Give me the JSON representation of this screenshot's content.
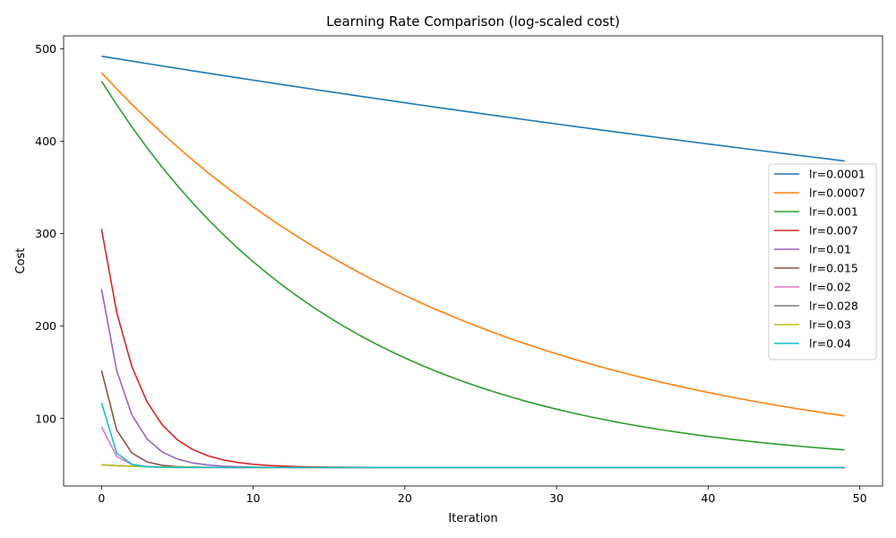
{
  "chart_data": {
    "type": "line",
    "title": "Learning Rate Comparison (log-scaled cost)",
    "xlabel": "Iteration",
    "ylabel": "Cost",
    "xlim": [
      -2.5,
      51.5
    ],
    "ylim": [
      27,
      514
    ],
    "xticks": [
      0,
      10,
      20,
      30,
      40,
      50
    ],
    "yticks": [
      100,
      200,
      300,
      400,
      500
    ],
    "grid": false,
    "legend_position": "center-right",
    "floor": 47,
    "iterations": 50,
    "series": [
      {
        "name": "lr=0.0001",
        "color": "#1f77b4",
        "start": 492,
        "rate": 0.006,
        "points": [
          [
            0,
            492
          ],
          [
            10,
            463
          ],
          [
            20,
            435
          ],
          [
            30,
            409
          ],
          [
            40,
            385
          ],
          [
            49,
            364
          ]
        ]
      },
      {
        "name": "lr=0.0007",
        "color": "#ff7f0e",
        "start": 474,
        "rate": 0.0415,
        "points": [
          [
            0,
            474
          ],
          [
            10,
            313
          ],
          [
            20,
            208
          ],
          [
            30,
            146
          ],
          [
            40,
            108
          ],
          [
            49,
            88
          ]
        ]
      },
      {
        "name": "lr=0.001",
        "color": "#2ca02c",
        "start": 465,
        "rate": 0.063,
        "points": [
          [
            0,
            465
          ],
          [
            10,
            257
          ],
          [
            20,
            150
          ],
          [
            30,
            99
          ],
          [
            40,
            75
          ],
          [
            49,
            63
          ]
        ]
      },
      {
        "name": "lr=0.007",
        "color": "#d62728",
        "start": 305,
        "rate": 0.43,
        "points": [
          [
            0,
            305
          ],
          [
            1,
            196
          ],
          [
            2,
            134
          ],
          [
            3,
            98
          ],
          [
            5,
            66
          ],
          [
            10,
            50
          ],
          [
            49,
            48
          ]
        ]
      },
      {
        "name": "lr=0.01",
        "color": "#9467bd",
        "start": 240,
        "rate": 0.61,
        "points": [
          [
            0,
            240
          ],
          [
            1,
            130
          ],
          [
            2,
            84
          ],
          [
            3,
            65
          ],
          [
            5,
            52
          ],
          [
            49,
            48
          ]
        ]
      },
      {
        "name": "lr=0.015",
        "color": "#8c564b",
        "start": 152,
        "rate": 0.95,
        "points": [
          [
            0,
            152
          ],
          [
            1,
            74
          ],
          [
            2,
            55
          ],
          [
            3,
            50
          ],
          [
            49,
            48
          ]
        ]
      },
      {
        "name": "lr=0.02",
        "color": "#e377c2",
        "start": 91,
        "rate": 1.3,
        "points": [
          [
            0,
            91
          ],
          [
            1,
            53
          ],
          [
            2,
            49
          ],
          [
            49,
            47
          ]
        ]
      },
      {
        "name": "lr=0.028",
        "color": "#7f7f7f",
        "start": 50,
        "rate": 0.4,
        "points": [
          [
            0,
            50
          ],
          [
            5,
            48
          ],
          [
            49,
            47
          ]
        ]
      },
      {
        "name": "lr=0.03",
        "color": "#bcbd22",
        "start": 50,
        "rate": 0.4,
        "points": [
          [
            0,
            50
          ],
          [
            5,
            48
          ],
          [
            49,
            47
          ]
        ]
      },
      {
        "name": "lr=0.04",
        "color": "#17becf",
        "start": 117,
        "rate": 1.5,
        "points": [
          [
            0,
            117
          ],
          [
            1,
            59
          ],
          [
            2,
            50
          ],
          [
            49,
            47
          ]
        ]
      }
    ]
  }
}
